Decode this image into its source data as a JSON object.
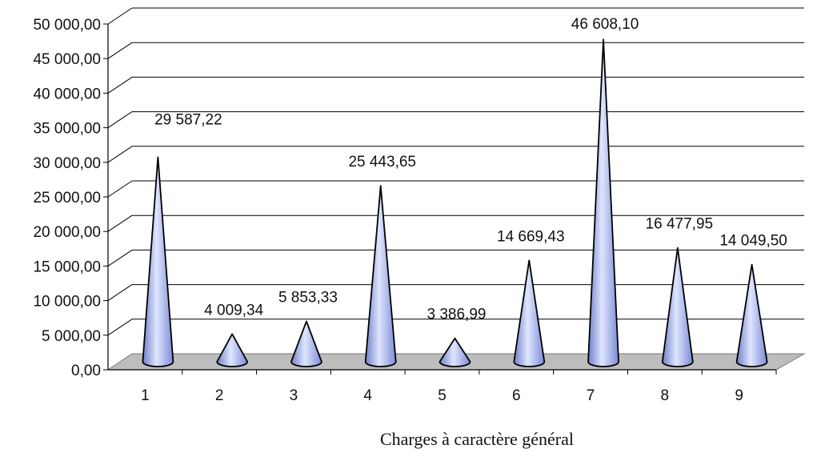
{
  "chart_data": {
    "type": "bar",
    "style": "3d-cone",
    "categories": [
      "1",
      "2",
      "3",
      "4",
      "5",
      "6",
      "7",
      "8",
      "9"
    ],
    "values": [
      29587.22,
      4009.34,
      5853.33,
      25443.65,
      3386.99,
      14669.43,
      46608.1,
      16477.95,
      14049.5
    ],
    "data_labels": [
      "29 587,22",
      "4 009,34",
      "5 853,33",
      "25 443,65",
      "3 386,99",
      "14 669,43",
      "46 608,10",
      "16 477,95",
      "14 049,50"
    ],
    "y_ticks": [
      0,
      5000,
      10000,
      15000,
      20000,
      25000,
      30000,
      35000,
      40000,
      45000,
      50000
    ],
    "y_tick_labels": [
      "0,00",
      "5 000,00",
      "10 000,00",
      "15 000,00",
      "20 000,00",
      "25 000,00",
      "30 000,00",
      "35 000,00",
      "40 000,00",
      "45 000,00",
      "50 000,00"
    ],
    "ylim": [
      0,
      50000
    ],
    "xlabel": "Charges à caractère général",
    "ylabel": "",
    "title": "",
    "grid": true,
    "legend": "none",
    "colors": {
      "cone": "#a4b4ee",
      "floor": "#bdbdbd",
      "grid": "#000000"
    }
  }
}
